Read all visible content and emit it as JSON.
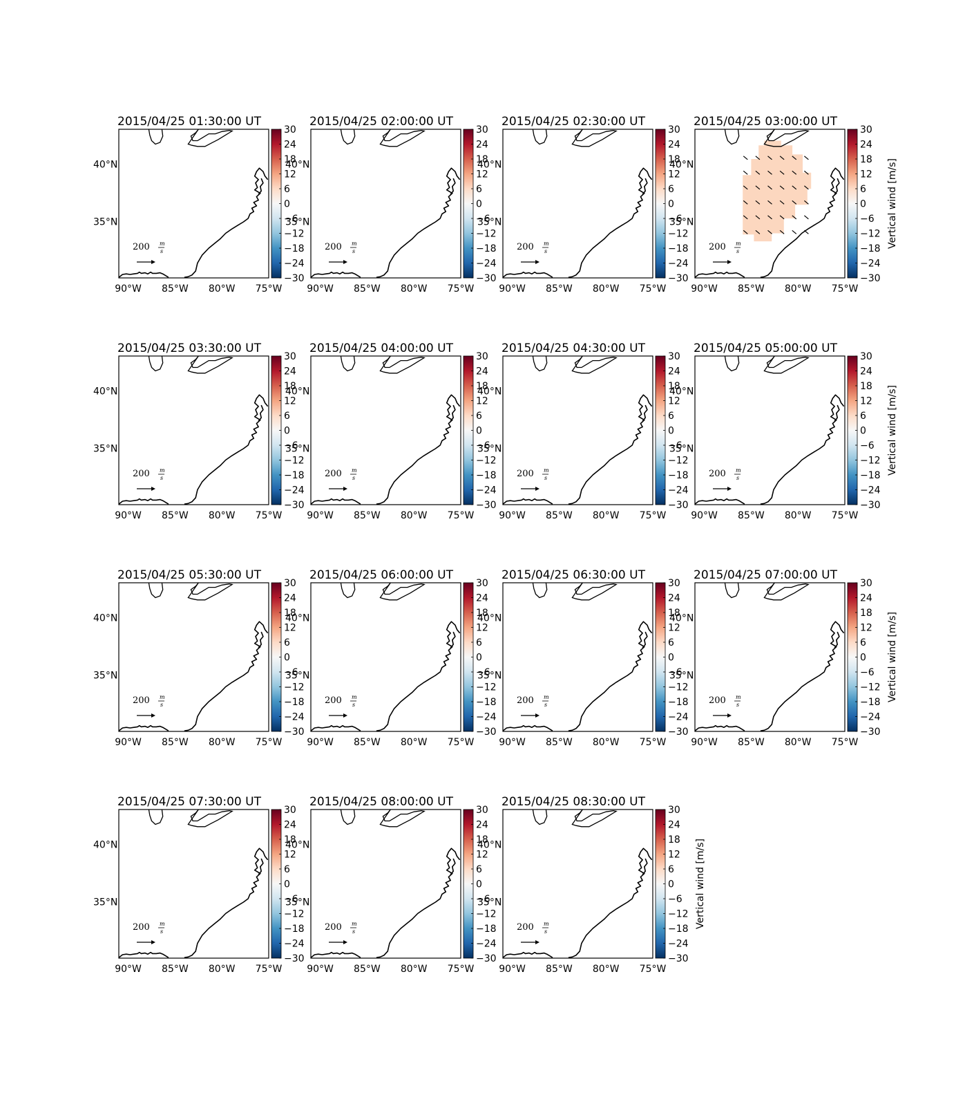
{
  "figure": {
    "colorbar_label": "Vertical wind [m/s]",
    "colorbar_ticks": [
      "30",
      "24",
      "18",
      "12",
      "6",
      "0",
      "−6",
      "−12",
      "−18",
      "−24",
      "−30"
    ],
    "lat_ticks": [
      "40°N",
      "35°N"
    ],
    "lon_ticks": [
      "90°W",
      "85°W",
      "80°W",
      "75°W"
    ],
    "quiver_key_value": "200",
    "quiver_key_unit_num": "m",
    "quiver_key_unit_den": "s",
    "colors": {
      "shaded_region": "#fcd7bf",
      "colormap": "RdBu_r"
    }
  },
  "chart_data": {
    "type": "map",
    "variable": "Vertical wind [m/s]",
    "colorbar_range": [
      -30,
      30
    ],
    "lon_range": [
      -91,
      -75
    ],
    "lat_range": [
      30,
      43
    ],
    "panels": [
      {
        "title": "2015/04/25 01:30:00 UT",
        "has_data": false
      },
      {
        "title": "2015/04/25 02:00:00 UT",
        "has_data": false
      },
      {
        "title": "2015/04/25 02:30:00 UT",
        "has_data": false
      },
      {
        "title": "2015/04/25 03:00:00 UT",
        "has_data": true,
        "vertical_wind_approx": 6
      },
      {
        "title": "2015/04/25 03:30:00 UT",
        "has_data": false
      },
      {
        "title": "2015/04/25 04:00:00 UT",
        "has_data": false
      },
      {
        "title": "2015/04/25 04:30:00 UT",
        "has_data": false
      },
      {
        "title": "2015/04/25 05:00:00 UT",
        "has_data": false
      },
      {
        "title": "2015/04/25 05:30:00 UT",
        "has_data": false
      },
      {
        "title": "2015/04/25 06:00:00 UT",
        "has_data": false
      },
      {
        "title": "2015/04/25 06:30:00 UT",
        "has_data": false
      },
      {
        "title": "2015/04/25 07:00:00 UT",
        "has_data": false
      },
      {
        "title": "2015/04/25 07:30:00 UT",
        "has_data": false
      },
      {
        "title": "2015/04/25 08:00:00 UT",
        "has_data": false
      },
      {
        "title": "2015/04/25 08:30:00 UT",
        "has_data": false
      }
    ]
  }
}
